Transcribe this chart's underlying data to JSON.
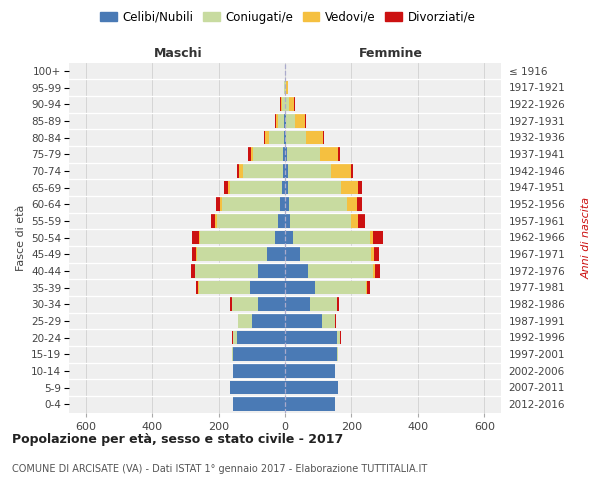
{
  "age_groups": [
    "0-4",
    "5-9",
    "10-14",
    "15-19",
    "20-24",
    "25-29",
    "30-34",
    "35-39",
    "40-44",
    "45-49",
    "50-54",
    "55-59",
    "60-64",
    "65-69",
    "70-74",
    "75-79",
    "80-84",
    "85-89",
    "90-94",
    "95-99",
    "100+"
  ],
  "birth_years": [
    "2012-2016",
    "2007-2011",
    "2002-2006",
    "1997-2001",
    "1992-1996",
    "1987-1991",
    "1982-1986",
    "1977-1981",
    "1972-1976",
    "1967-1971",
    "1962-1966",
    "1957-1961",
    "1952-1956",
    "1947-1951",
    "1942-1946",
    "1937-1941",
    "1932-1936",
    "1927-1931",
    "1922-1926",
    "1917-1921",
    "≤ 1916"
  ],
  "male_celibe": [
    155,
    165,
    155,
    155,
    145,
    100,
    80,
    105,
    80,
    55,
    30,
    20,
    15,
    10,
    7,
    5,
    3,
    2,
    1,
    1,
    0
  ],
  "male_coniugato": [
    0,
    0,
    0,
    3,
    12,
    40,
    80,
    155,
    190,
    210,
    225,
    185,
    175,
    155,
    120,
    90,
    45,
    18,
    8,
    2,
    0
  ],
  "male_vedovo": [
    0,
    0,
    0,
    0,
    0,
    0,
    0,
    1,
    2,
    2,
    4,
    5,
    6,
    8,
    10,
    8,
    12,
    8,
    4,
    1,
    0
  ],
  "male_divorziato": [
    0,
    0,
    0,
    0,
    1,
    2,
    5,
    8,
    12,
    12,
    20,
    12,
    12,
    10,
    8,
    8,
    3,
    2,
    1,
    0,
    0
  ],
  "female_nubile": [
    150,
    160,
    150,
    155,
    155,
    110,
    75,
    90,
    70,
    45,
    25,
    15,
    12,
    10,
    8,
    5,
    3,
    2,
    1,
    1,
    0
  ],
  "female_coniugata": [
    0,
    0,
    0,
    3,
    12,
    40,
    80,
    155,
    195,
    215,
    230,
    185,
    175,
    160,
    130,
    100,
    60,
    28,
    12,
    3,
    1
  ],
  "female_vedova": [
    0,
    0,
    0,
    0,
    0,
    0,
    1,
    2,
    5,
    8,
    10,
    20,
    30,
    50,
    60,
    55,
    50,
    30,
    15,
    4,
    0
  ],
  "female_divorziata": [
    0,
    0,
    0,
    0,
    1,
    2,
    5,
    10,
    15,
    15,
    30,
    20,
    15,
    12,
    8,
    5,
    3,
    2,
    1,
    0,
    0
  ],
  "color_celibe": "#4a7ab5",
  "color_coniugato": "#c8dba0",
  "color_vedovo": "#f5c040",
  "color_divorziato": "#cc1111",
  "legend_labels": [
    "Celibi/Nubili",
    "Coniugati/e",
    "Vedovi/e",
    "Divorziati/e"
  ],
  "label_maschi": "Maschi",
  "label_femmine": "Femmine",
  "label_fasce": "Fasce di età",
  "label_anni": "Anni di nascita",
  "xlim": 650,
  "title": "Popolazione per età, sesso e stato civile - 2017",
  "subtitle": "COMUNE DI ARCISATE (VA) - Dati ISTAT 1° gennaio 2017 - Elaborazione TUTTITALIA.IT",
  "bg_color": "#efefef"
}
